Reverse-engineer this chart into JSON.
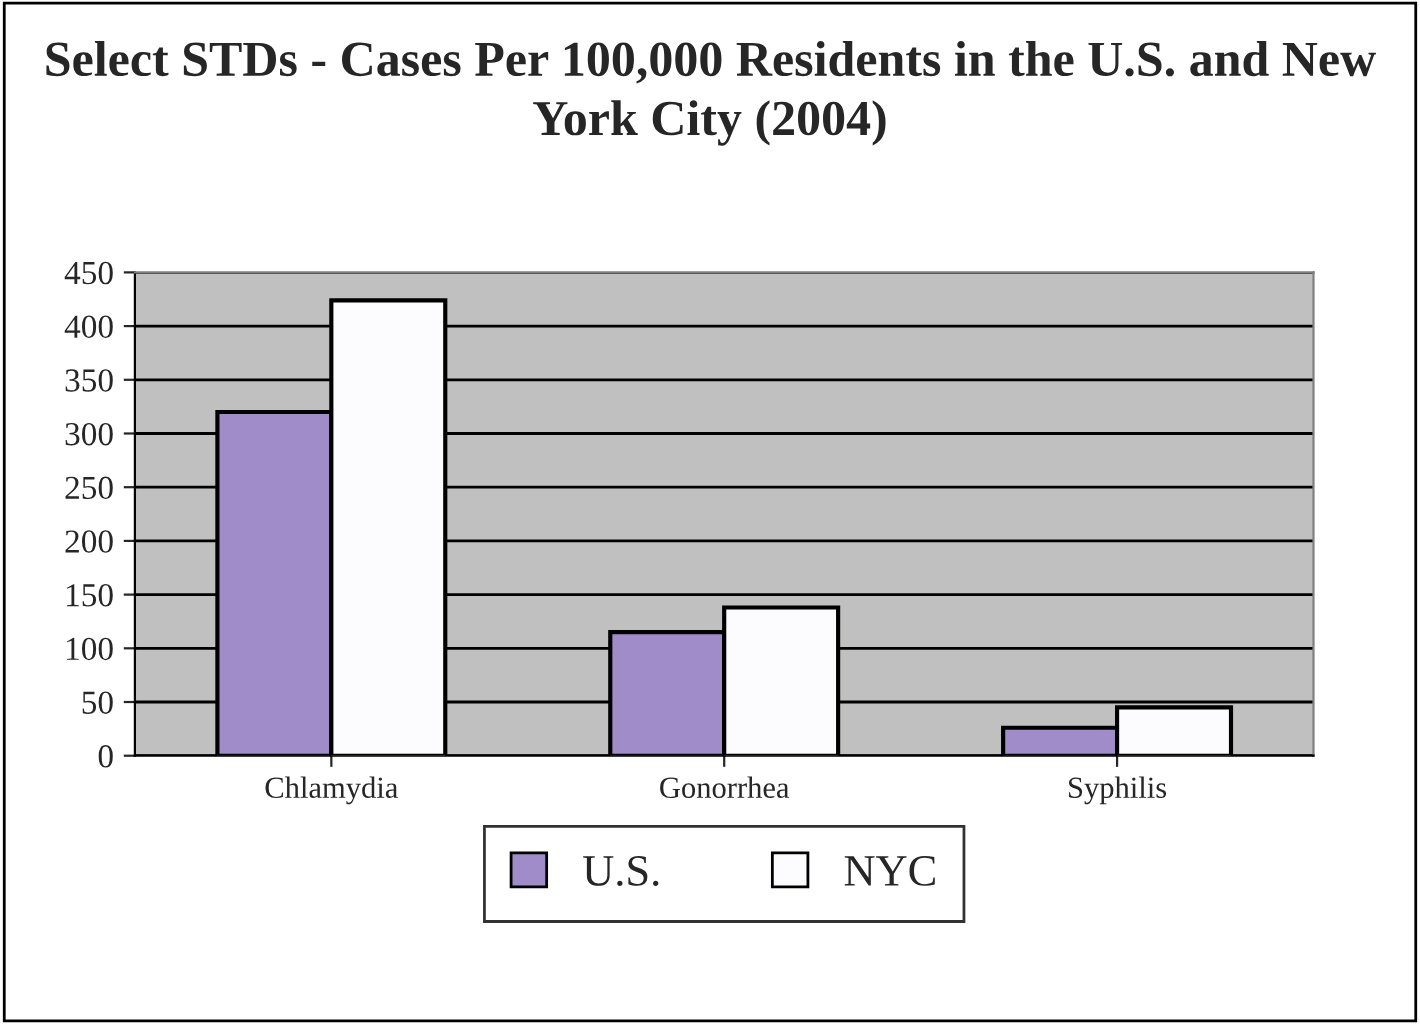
{
  "chart_data": {
    "type": "bar",
    "title": "Select STDs - Cases Per 100,000 Residents in the U.S. and New York City (2004)",
    "categories": [
      "Chlamydia",
      "Gonorrhea",
      "Syphilis"
    ],
    "series": [
      {
        "name": "U.S.",
        "color": "#a08cc8",
        "values": [
          320,
          115,
          26
        ]
      },
      {
        "name": "NYC",
        "color": "#fcfcff",
        "values": [
          424,
          138,
          45
        ]
      }
    ],
    "ylim": [
      0,
      450
    ],
    "yticks": [
      0,
      50,
      100,
      150,
      200,
      250,
      300,
      350,
      400,
      450
    ],
    "grid": "y",
    "legend": "bottom"
  }
}
